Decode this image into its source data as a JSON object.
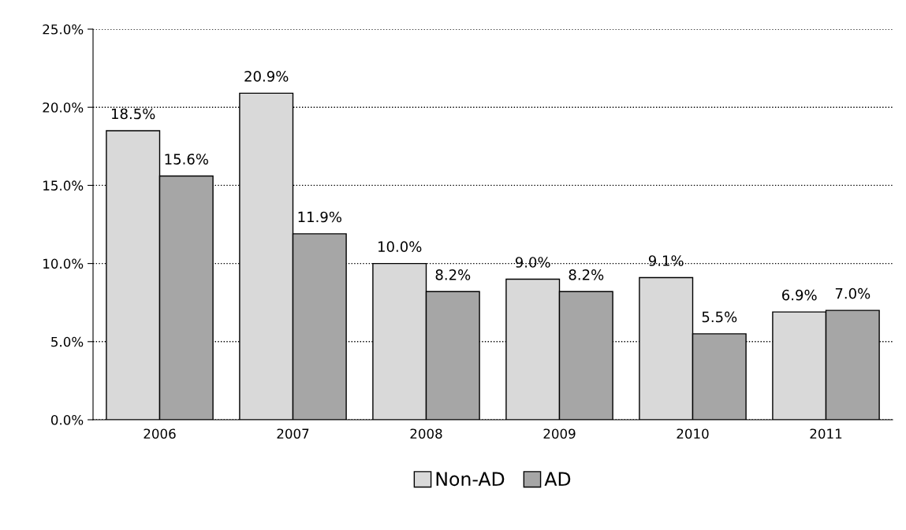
{
  "chart_data": {
    "type": "bar",
    "categories": [
      "2006",
      "2007",
      "2008",
      "2009",
      "2010",
      "2011"
    ],
    "series": [
      {
        "name": "Non-AD",
        "color": "#d9d9d9",
        "values": [
          18.5,
          20.9,
          10.0,
          9.0,
          9.1,
          6.9
        ],
        "value_labels": [
          "18.5%",
          "20.9%",
          "10.0%",
          "9.0%",
          "9.1%",
          "6.9%"
        ]
      },
      {
        "name": "AD",
        "color": "#a6a6a6",
        "values": [
          15.6,
          11.9,
          8.2,
          8.2,
          5.5,
          7.0
        ],
        "value_labels": [
          "15.6%",
          "11.9%",
          "8.2%",
          "8.2%",
          "5.5%",
          "7.0%"
        ]
      }
    ],
    "ylim": [
      0,
      25
    ],
    "yticks": [
      {
        "value": 0,
        "label": "0.0%"
      },
      {
        "value": 5,
        "label": "5.0%"
      },
      {
        "value": 10,
        "label": "10.0%"
      },
      {
        "value": 15,
        "label": "15.0%"
      },
      {
        "value": 20,
        "label": "20.0%"
      },
      {
        "value": 25,
        "label": "25.0%"
      }
    ],
    "grid": "y",
    "legend": "bottom"
  }
}
